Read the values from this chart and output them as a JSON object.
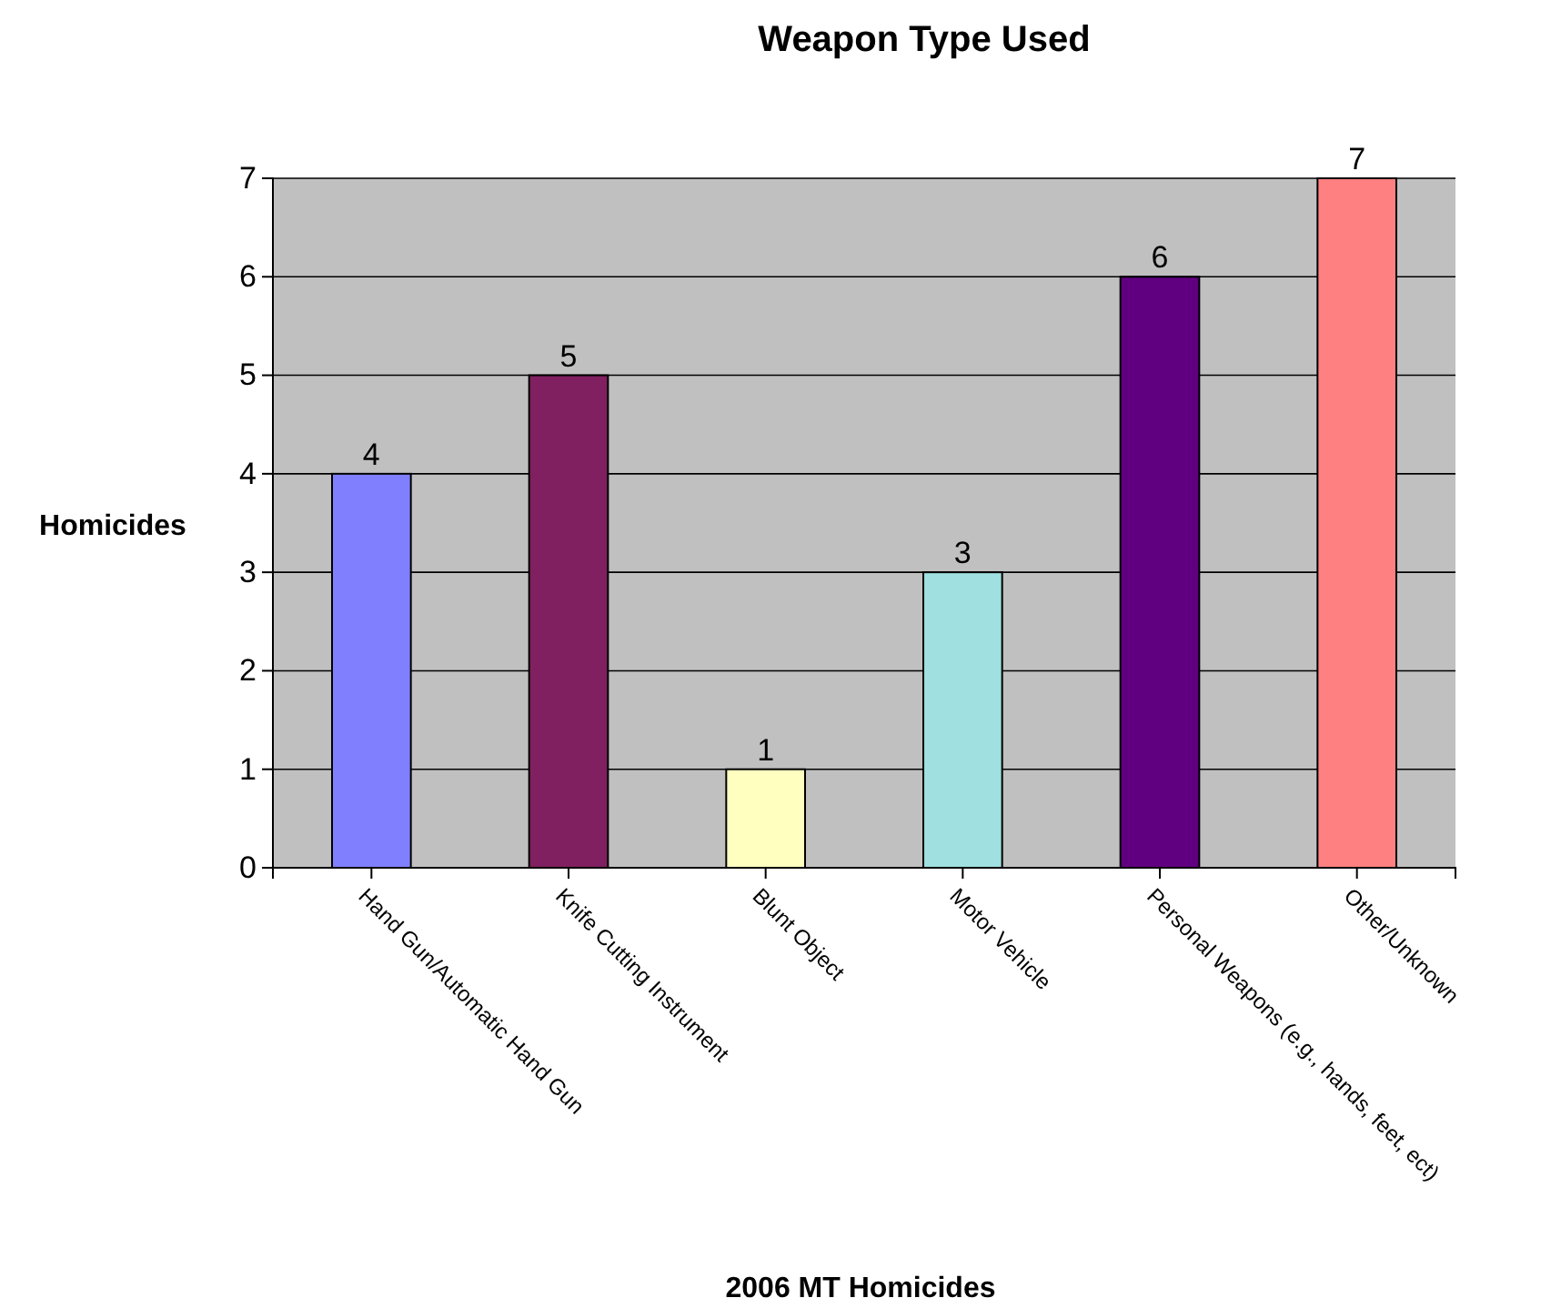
{
  "chart_data": {
    "type": "bar",
    "title": "Weapon Type Used",
    "xlabel": "2006 MT Homicides",
    "ylabel": "Homicides",
    "categories": [
      "Hand Gun/Automatic Hand Gun",
      "Knife Cutting Instrument",
      "Blunt Object",
      "Motor Vehicle",
      "Personal Weapons (e.g., hands, feet, ect)",
      "Other/Unknown"
    ],
    "values": [
      4,
      5,
      1,
      3,
      6,
      7
    ],
    "colors": [
      "#8080ff",
      "#802060",
      "#ffffc0",
      "#a0e0e0",
      "#600080",
      "#ff8080"
    ],
    "ylim": [
      0,
      7
    ],
    "yticks": [
      0,
      1,
      2,
      3,
      4,
      5,
      6,
      7
    ],
    "grid": "y",
    "data_labels": true
  }
}
